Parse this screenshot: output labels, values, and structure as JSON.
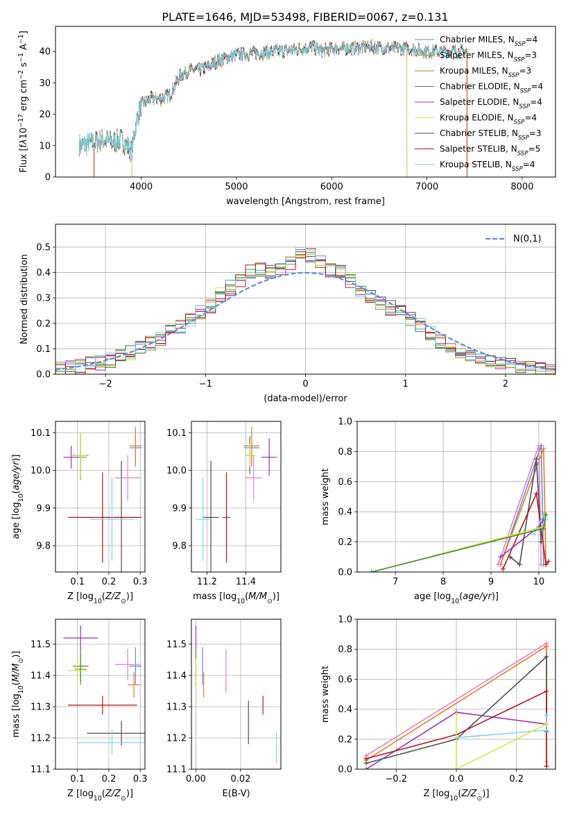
{
  "figure_title": "PLATE=1646, MJD=53498, FIBERID=0067, z=0.131",
  "colors": {
    "Chabrier MILES": "#5b8ed6",
    "Salpeter MILES": "#e8792b",
    "Kroupa MILES": "#9c8a2c",
    "Chabrier ELODIE": "#3f8f3f",
    "Salpeter ELODIE": "#9b2fb8",
    "Kroupa ELODIE": "#d6e24a",
    "Chabrier STELIB": "#4d4d4d",
    "Salpeter STELIB": "#b3161d",
    "Kroupa STELIB": "#7fd6e0",
    "pink": "#e47fc2",
    "normal": "#5b8ed6"
  },
  "chart_data": [
    {
      "id": "spectrum",
      "type": "line",
      "xlabel": "wavelength [Angstrom, rest frame]",
      "ylabel": "Flux [f",
      "xlim": [
        3100,
        8350
      ],
      "ylim": [
        0,
        48
      ],
      "xticks": [
        4000,
        5000,
        6000,
        7000,
        8000
      ],
      "yticks": [
        0,
        10,
        20,
        30,
        40
      ],
      "grid": false,
      "legend_position": "top-right",
      "envelope": {
        "x": [
          3350,
          3500,
          3600,
          3700,
          3800,
          3900,
          3950,
          4000,
          4100,
          4200,
          4300,
          4400,
          4500,
          4600,
          4700,
          4800,
          4900,
          5000,
          5200,
          5400,
          5600,
          5800,
          5900,
          6000,
          6200,
          6400,
          6600,
          6800,
          7000,
          7200,
          7400
        ],
        "y": [
          10,
          11,
          12,
          11,
          12,
          8,
          18,
          23,
          25,
          25,
          26,
          32,
          34,
          34,
          35,
          37,
          38,
          39,
          39.5,
          40,
          40.5,
          41.5,
          40,
          41,
          41,
          41.5,
          41,
          41,
          40,
          40,
          40
        ]
      },
      "series": [
        {
          "name": "Chabrier MILES, N",
          "ssp": "4",
          "start": 3350,
          "end": 7420
        },
        {
          "name": "Salpeter MILES, N",
          "ssp": "3",
          "start": 3500,
          "end": 7420
        },
        {
          "name": "Kroupa MILES, N",
          "ssp": "3",
          "start": 3350,
          "end": 7420
        },
        {
          "name": "Chabrier ELODIE, N",
          "ssp": "4",
          "start": 3350,
          "end": 7420
        },
        {
          "name": "Salpeter ELODIE, N",
          "ssp": "4",
          "start": 3900,
          "end": 6790
        },
        {
          "name": "Kroupa ELODIE, N",
          "ssp": "4",
          "start": 3900,
          "end": 6790
        },
        {
          "name": "Chabrier STELIB, N",
          "ssp": "3",
          "start": 3350,
          "end": 7420
        },
        {
          "name": "Salpeter STELIB, N",
          "ssp": "5",
          "start": 3500,
          "end": 7420
        },
        {
          "name": "Kroupa STELIB, N",
          "ssp": "4",
          "start": 3350,
          "end": 7420
        }
      ]
    },
    {
      "id": "residuals",
      "type": "line",
      "xlabel": "(data-model)/error",
      "ylabel": "Normed distribution",
      "xlim": [
        -2.5,
        2.5
      ],
      "ylim": [
        0,
        0.59
      ],
      "xticks": [
        -2,
        -1,
        0,
        1,
        2
      ],
      "yticks": [
        0.0,
        0.1,
        0.2,
        0.3,
        0.4,
        0.5
      ],
      "grid": true,
      "legend_position": "top-right",
      "legend_label": "N(0,1)",
      "bin_width": 0.1,
      "histogram_centers": [
        -2.45,
        -2.35,
        -2.25,
        -2.15,
        -2.05,
        -1.95,
        -1.85,
        -1.75,
        -1.65,
        -1.55,
        -1.45,
        -1.35,
        -1.25,
        -1.15,
        -1.05,
        -0.95,
        -0.85,
        -0.75,
        -0.65,
        -0.55,
        -0.45,
        -0.35,
        -0.25,
        -0.15,
        -0.05,
        0.05,
        0.15,
        0.25,
        0.35,
        0.45,
        0.55,
        0.65,
        0.75,
        0.85,
        0.95,
        1.05,
        1.15,
        1.25,
        1.35,
        1.45,
        1.55,
        1.65,
        1.75,
        1.85,
        1.95,
        2.05,
        2.15,
        2.25,
        2.35,
        2.45
      ],
      "histogram_mean": [
        0.02,
        0.025,
        0.03,
        0.04,
        0.045,
        0.055,
        0.07,
        0.085,
        0.1,
        0.12,
        0.14,
        0.165,
        0.19,
        0.21,
        0.24,
        0.27,
        0.31,
        0.34,
        0.37,
        0.4,
        0.41,
        0.4,
        0.42,
        0.44,
        0.48,
        0.47,
        0.44,
        0.41,
        0.4,
        0.37,
        0.33,
        0.3,
        0.28,
        0.26,
        0.24,
        0.22,
        0.19,
        0.16,
        0.13,
        0.11,
        0.09,
        0.075,
        0.06,
        0.05,
        0.04,
        0.035,
        0.03,
        0.025,
        0.02,
        0.015
      ]
    },
    {
      "id": "age-vs-Z",
      "type": "scatter",
      "xlabel": "Z [log",
      "ylabel": "age  [log",
      "xlim": [
        0.03,
        0.315
      ],
      "ylim": [
        9.73,
        10.13
      ],
      "xticks": [
        0.1,
        0.2,
        0.3
      ],
      "yticks": [
        9.8,
        9.9,
        10.0,
        10.1
      ],
      "grid": true,
      "points": [
        {
          "series": "Chabrier MILES",
          "x": 0.285,
          "y": 10.06,
          "xerr": 0.02,
          "yerr": 0.05
        },
        {
          "series": "Salpeter MILES",
          "x": 0.285,
          "y": 10.065,
          "xerr": 0.02,
          "yerr": 0.05
        },
        {
          "series": "Kroupa MILES",
          "x": 0.11,
          "y": 10.035,
          "xerr": 0.02,
          "yerr": 0.06
        },
        {
          "series": "Chabrier ELODIE",
          "x": 0.11,
          "y": 10.04,
          "xerr": 0.025,
          "yerr": 0.06
        },
        {
          "series": "Salpeter ELODIE",
          "x": 0.08,
          "y": 10.035,
          "xerr": 0.025,
          "yerr": 0.03
        },
        {
          "series": "Kroupa ELODIE",
          "x": 0.11,
          "y": 10.04,
          "xerr": 0.02,
          "yerr": 0.06
        },
        {
          "series": "Chabrier STELIB",
          "x": 0.24,
          "y": 9.875,
          "xerr": 0.065,
          "yerr": 0.15
        },
        {
          "series": "Salpeter STELIB",
          "x": 0.18,
          "y": 9.875,
          "xerr": 0.11,
          "yerr": 0.12
        },
        {
          "series": "Kroupa STELIB",
          "x": 0.21,
          "y": 9.87,
          "xerr": 0.07,
          "yerr": 0.11
        },
        {
          "series": "pink",
          "x": 0.26,
          "y": 9.98,
          "xerr": 0.04,
          "yerr": 0.06
        }
      ]
    },
    {
      "id": "age-vs-mass",
      "type": "scatter",
      "xlabel": "mass [log",
      "ylabel": "",
      "xlim": [
        11.12,
        11.58
      ],
      "ylim": [
        9.73,
        10.13
      ],
      "xticks": [
        11.2,
        11.4
      ],
      "yticks": [
        9.8,
        9.9,
        10.0,
        10.1
      ],
      "grid": true,
      "points": [
        {
          "series": "Chabrier MILES",
          "x": 11.43,
          "y": 10.06,
          "xerr": 0.04,
          "yerr": 0.05
        },
        {
          "series": "Salpeter MILES",
          "x": 11.43,
          "y": 10.065,
          "xerr": 0.04,
          "yerr": 0.05
        },
        {
          "series": "Kroupa MILES",
          "x": 11.42,
          "y": 10.04,
          "xerr": 0.02,
          "yerr": 0.05
        },
        {
          "series": "Chabrier ELODIE",
          "x": 11.42,
          "y": 10.04,
          "xerr": 0.02,
          "yerr": 0.05
        },
        {
          "series": "Salpeter ELODIE",
          "x": 11.52,
          "y": 10.035,
          "xerr": 0.04,
          "yerr": 0.05
        },
        {
          "series": "Kroupa ELODIE",
          "x": 11.42,
          "y": 10.04,
          "xerr": 0.03,
          "yerr": 0.03
        },
        {
          "series": "Chabrier STELIB",
          "x": 11.22,
          "y": 9.875,
          "xerr": 0.04,
          "yerr": 0.15
        },
        {
          "series": "Salpeter STELIB",
          "x": 11.3,
          "y": 9.875,
          "xerr": 0.02,
          "yerr": 0.12
        },
        {
          "series": "Kroupa STELIB",
          "x": 11.18,
          "y": 9.87,
          "xerr": 0.04,
          "yerr": 0.11
        },
        {
          "series": "pink",
          "x": 11.44,
          "y": 9.98,
          "xerr": 0.04,
          "yerr": 0.06
        }
      ]
    },
    {
      "id": "weight-vs-age",
      "type": "line",
      "xlabel": "age  [log",
      "ylabel": "mass weight",
      "xlim": [
        6.2,
        10.35
      ],
      "ylim": [
        0,
        1.0
      ],
      "xticks": [
        7,
        8,
        9,
        10
      ],
      "yticks": [
        0.0,
        0.2,
        0.4,
        0.6,
        0.8,
        1.0
      ],
      "grid": true,
      "series": [
        {
          "name": "Chabrier MILES",
          "x": [
            9.2,
            10.05,
            10.1
          ],
          "y": [
            0.05,
            0.84,
            0.05
          ]
        },
        {
          "name": "Salpeter MILES",
          "x": [
            9.2,
            10.1,
            10.15
          ],
          "y": [
            0.05,
            0.82,
            0.05
          ]
        },
        {
          "name": "pink",
          "x": [
            9.15,
            10.0,
            10.05
          ],
          "y": [
            0.05,
            0.84,
            0.05
          ]
        },
        {
          "name": "Chabrier STELIB",
          "x": [
            9.4,
            9.6,
            9.95,
            10.05
          ],
          "y": [
            0.1,
            0.05,
            0.75,
            0.2
          ]
        },
        {
          "name": "Salpeter STELIB",
          "x": [
            9.25,
            9.95,
            10.15,
            10.2
          ],
          "y": [
            0.02,
            0.52,
            0.05,
            0.07
          ]
        },
        {
          "name": "Salpeter ELODIE",
          "x": [
            9.2,
            10.0,
            10.1
          ],
          "y": [
            0.1,
            0.3,
            0.35
          ]
        },
        {
          "name": "Kroupa STELIB",
          "x": [
            9.9,
            10.1,
            10.15
          ],
          "y": [
            0.25,
            0.38,
            0.35
          ]
        },
        {
          "name": "Kroupa ELODIE",
          "x": [
            6.5,
            10.1,
            10.15
          ],
          "y": [
            0.0,
            0.3,
            0.38
          ]
        },
        {
          "name": "Chabrier ELODIE",
          "x": [
            6.5,
            10.1,
            10.15
          ],
          "y": [
            0.0,
            0.29,
            0.38
          ]
        }
      ]
    },
    {
      "id": "mass-vs-Z",
      "type": "scatter",
      "xlabel": "Z [log",
      "ylabel": "mass [log",
      "xlim": [
        0.03,
        0.315
      ],
      "ylim": [
        11.1,
        11.58
      ],
      "xticks": [
        0.1,
        0.2,
        0.3
      ],
      "yticks": [
        11.1,
        11.2,
        11.3,
        11.4,
        11.5
      ],
      "grid": true,
      "points": [
        {
          "series": "Chabrier MILES",
          "x": 0.285,
          "y": 11.43,
          "xerr": 0.02,
          "yerr": 0.06
        },
        {
          "series": "Salpeter MILES",
          "x": 0.28,
          "y": 11.37,
          "xerr": 0.02,
          "yerr": 0.04
        },
        {
          "series": "Kroupa MILES",
          "x": 0.11,
          "y": 11.42,
          "xerr": 0.02,
          "yerr": 0.05
        },
        {
          "series": "Chabrier ELODIE",
          "x": 0.11,
          "y": 11.43,
          "xerr": 0.025,
          "yerr": 0.05
        },
        {
          "series": "Salpeter ELODIE",
          "x": 0.11,
          "y": 11.52,
          "xerr": 0.055,
          "yerr": 0.04
        },
        {
          "series": "Kroupa ELODIE",
          "x": 0.1,
          "y": 11.415,
          "xerr": 0.03,
          "yerr": 0.04
        },
        {
          "series": "Chabrier STELIB",
          "x": 0.24,
          "y": 11.215,
          "xerr": 0.11,
          "yerr": 0.04
        },
        {
          "series": "Salpeter STELIB",
          "x": 0.18,
          "y": 11.305,
          "xerr": 0.11,
          "yerr": 0.03
        },
        {
          "series": "Kroupa STELIB",
          "x": 0.21,
          "y": 11.185,
          "xerr": 0.11,
          "yerr": 0.04
        },
        {
          "series": "pink",
          "x": 0.26,
          "y": 11.435,
          "xerr": 0.04,
          "yerr": 0.05
        }
      ]
    },
    {
      "id": "mass-vs-ebv",
      "type": "scatter",
      "xlabel": "E(B-V)",
      "ylabel": "",
      "xlim": [
        -0.002,
        0.038
      ],
      "ylim": [
        11.1,
        11.58
      ],
      "xticks": [
        0.0,
        0.02
      ],
      "yticks": [
        11.1,
        11.2,
        11.3,
        11.4,
        11.5
      ],
      "grid": true,
      "points": [
        {
          "series": "Chabrier MILES",
          "x": 0.003,
          "y": 11.43,
          "xerr": 0,
          "yerr": 0.06
        },
        {
          "series": "Salpeter MILES",
          "x": 0.0035,
          "y": 11.37,
          "xerr": 0,
          "yerr": 0.04
        },
        {
          "series": "Kroupa MILES",
          "x": 0.0,
          "y": 11.42,
          "xerr": 0,
          "yerr": 0.05
        },
        {
          "series": "Chabrier ELODIE",
          "x": 0.0,
          "y": 11.43,
          "xerr": 0,
          "yerr": 0.05
        },
        {
          "series": "Salpeter ELODIE",
          "x": 0.0,
          "y": 11.52,
          "xerr": 0,
          "yerr": 0.04
        },
        {
          "series": "Kroupa ELODIE",
          "x": 0.0,
          "y": 11.415,
          "xerr": 0,
          "yerr": 0.04
        },
        {
          "series": "Chabrier STELIB",
          "x": 0.0235,
          "y": 11.25,
          "xerr": 0,
          "yerr": 0.07
        },
        {
          "series": "Salpeter STELIB",
          "x": 0.03,
          "y": 11.305,
          "xerr": 0,
          "yerr": 0.03
        },
        {
          "series": "Kroupa STELIB",
          "x": 0.036,
          "y": 11.17,
          "xerr": 0,
          "yerr": 0.05
        },
        {
          "series": "pink",
          "x": 0.0135,
          "y": 11.415,
          "xerr": 0,
          "yerr": 0.07
        }
      ]
    },
    {
      "id": "weight-vs-Z",
      "type": "line",
      "xlabel": "Z [log",
      "ylabel": "mass weight",
      "xlim": [
        -0.33,
        0.33
      ],
      "ylim": [
        0,
        1.0
      ],
      "xticks": [
        -0.2,
        0.0,
        0.2
      ],
      "yticks": [
        0.0,
        0.2,
        0.4,
        0.6,
        0.8,
        1.0
      ],
      "grid": true,
      "series": [
        {
          "name": "pink",
          "x": [
            -0.3,
            0.3,
            0.3
          ],
          "y": [
            0.09,
            0.84,
            0.05
          ]
        },
        {
          "name": "Salpeter MILES",
          "x": [
            -0.3,
            0.3,
            0.3
          ],
          "y": [
            0.06,
            0.82,
            0.02
          ]
        },
        {
          "name": "Chabrier STELIB",
          "x": [
            -0.3,
            0.0,
            0.3,
            0.3
          ],
          "y": [
            0.04,
            0.2,
            0.75,
            0.25
          ]
        },
        {
          "name": "Salpeter ELODIE",
          "x": [
            -0.3,
            0.0,
            0.3
          ],
          "y": [
            0.0,
            0.38,
            0.3
          ]
        },
        {
          "name": "Salpeter STELIB",
          "x": [
            -0.3,
            0.0,
            0.3,
            0.3
          ],
          "y": [
            0.07,
            0.23,
            0.52,
            0.02
          ]
        },
        {
          "name": "Kroupa STELIB",
          "x": [
            0.0,
            0.3,
            0.3
          ],
          "y": [
            0.21,
            0.26,
            0.36
          ]
        },
        {
          "name": "Kroupa ELODIE",
          "x": [
            0.0,
            0.0,
            0.3,
            0.3
          ],
          "y": [
            0.37,
            0.0,
            0.3,
            0.3
          ]
        }
      ]
    }
  ]
}
